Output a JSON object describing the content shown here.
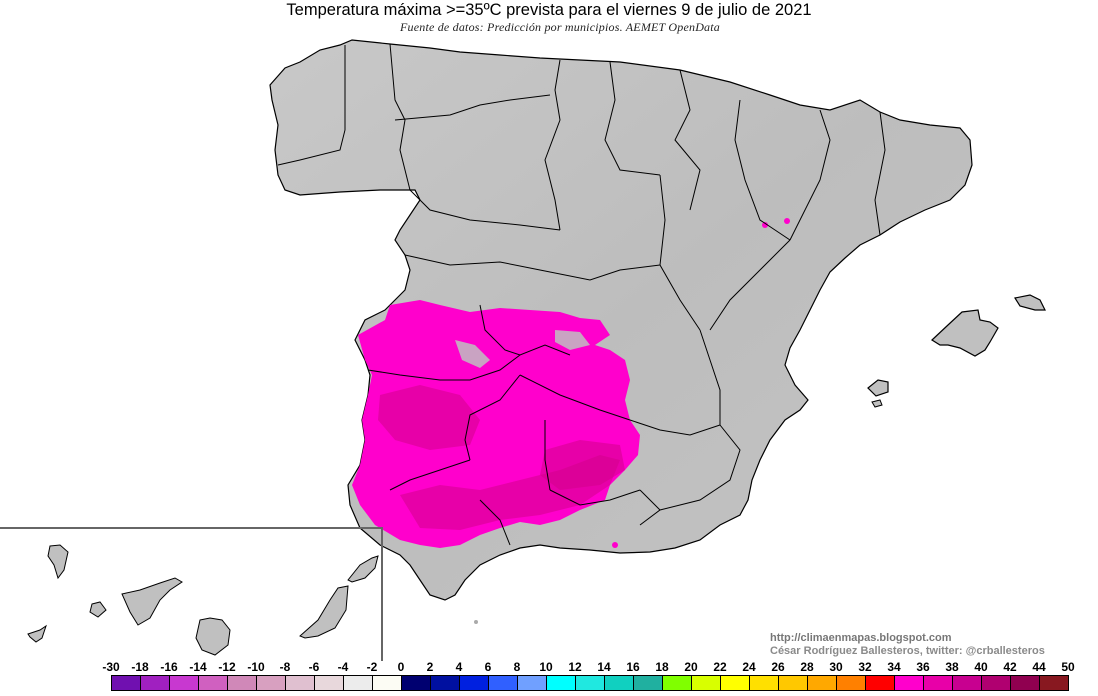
{
  "header": {
    "title": "Temperatura máxima >=35ºC prevista para el viernes 9 de julio de 2021",
    "subtitle": "Fuente de datos: Predicción por municipios. AEMET OpenData"
  },
  "map": {
    "region": "Spain (peninsula, Balearic Islands, Canary Islands inset)",
    "highlight_threshold": ">=35ºC",
    "highlight_color": "#ff00cc",
    "highlight_dark_color": "#d4008a",
    "base_color": "#c0c0c0",
    "border_color": "#000000",
    "highlighted_areas": [
      "Extremadura",
      "Andalucía occidental/norte",
      "Castilla-La Mancha sur",
      "Valle del Ebro (puntos)"
    ]
  },
  "credits": {
    "url": "http://climaenmapas.blogspot.com",
    "author": "César Rodríguez Ballesteros, twitter: @crballesteros"
  },
  "legend": {
    "labels": [
      "-30",
      "-18",
      "-16",
      "-14",
      "-12",
      "-10",
      "-8",
      "-6",
      "-4",
      "-2",
      "0",
      "2",
      "4",
      "6",
      "8",
      "10",
      "12",
      "14",
      "16",
      "18",
      "20",
      "22",
      "24",
      "26",
      "28",
      "30",
      "32",
      "34",
      "36",
      "38",
      "40",
      "42",
      "44",
      "50"
    ],
    "colors": [
      "#7010b0",
      "#a020c0",
      "#c838d0",
      "#d060c0",
      "#d088b8",
      "#d8a0c0",
      "#e0c0d0",
      "#e8d8dc",
      "#ececec",
      "#fcfcf4",
      "#000070",
      "#0010a0",
      "#0020e0",
      "#3060ff",
      "#70a0ff",
      "#00ffff",
      "#20e8e0",
      "#10d0c0",
      "#20b0a0",
      "#80ff00",
      "#d8ff00",
      "#ffff00",
      "#ffe000",
      "#ffc800",
      "#ffa800",
      "#ff8000",
      "#ff0000",
      "#ff00cc",
      "#e800a8",
      "#c80090",
      "#b00070",
      "#900050",
      "#881820"
    ]
  }
}
